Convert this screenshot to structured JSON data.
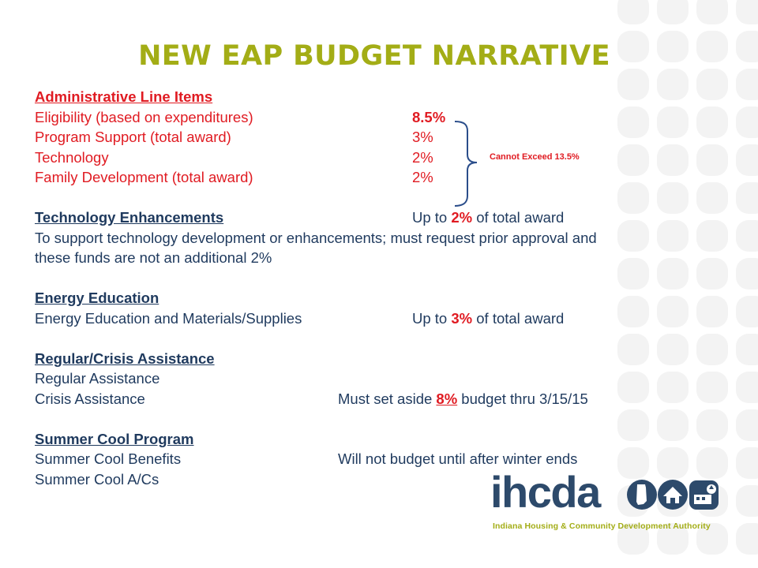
{
  "slide": {
    "title": "NEW EAP BUDGET NARRATIVE",
    "cap_note": "Cannot Exceed 13.5%"
  },
  "admin": {
    "heading": "Administrative Line Items",
    "items": [
      {
        "label": "Eligibility  (based on expenditures)",
        "value": "8.5%"
      },
      {
        "label": "Program Support (total award)",
        "value": "3%"
      },
      {
        "label": "Technology",
        "value": "2%"
      },
      {
        "label": "Family Development (total award)",
        "value": "2%"
      }
    ]
  },
  "tech": {
    "heading": "Technology Enhancements",
    "pre": "Up to ",
    "pct": "2%",
    "post": " of total award",
    "desc1": "To support technology development or enhancements; must request prior approval and",
    "desc2": "these funds are not an additional 2%"
  },
  "energy": {
    "heading": "Energy Education",
    "line": "Energy Education and Materials/Supplies",
    "pre": "Up to ",
    "pct": "3%",
    "post": " of total award"
  },
  "crisis": {
    "heading": "Regular/Crisis Assistance",
    "regular": "Regular Assistance",
    "crisis": "Crisis Assistance",
    "pre": "Must set aside ",
    "pct": "8%",
    "post": " budget thru 3/15/15"
  },
  "summer": {
    "heading": "Summer Cool Program",
    "benefits": "Summer Cool Benefits",
    "benefits_note": "Will not budget until after winter ends",
    "acs": "Summer Cool A/Cs"
  },
  "logo": {
    "wordmark": "ihcda",
    "subtitle": "Indiana Housing & Community Development Authority"
  },
  "colors": {
    "title_green": "#a3ad16",
    "body_navy": "#1f3a5e",
    "accent_red": "#e01b22",
    "dot_gray": "#f3f3f3"
  }
}
